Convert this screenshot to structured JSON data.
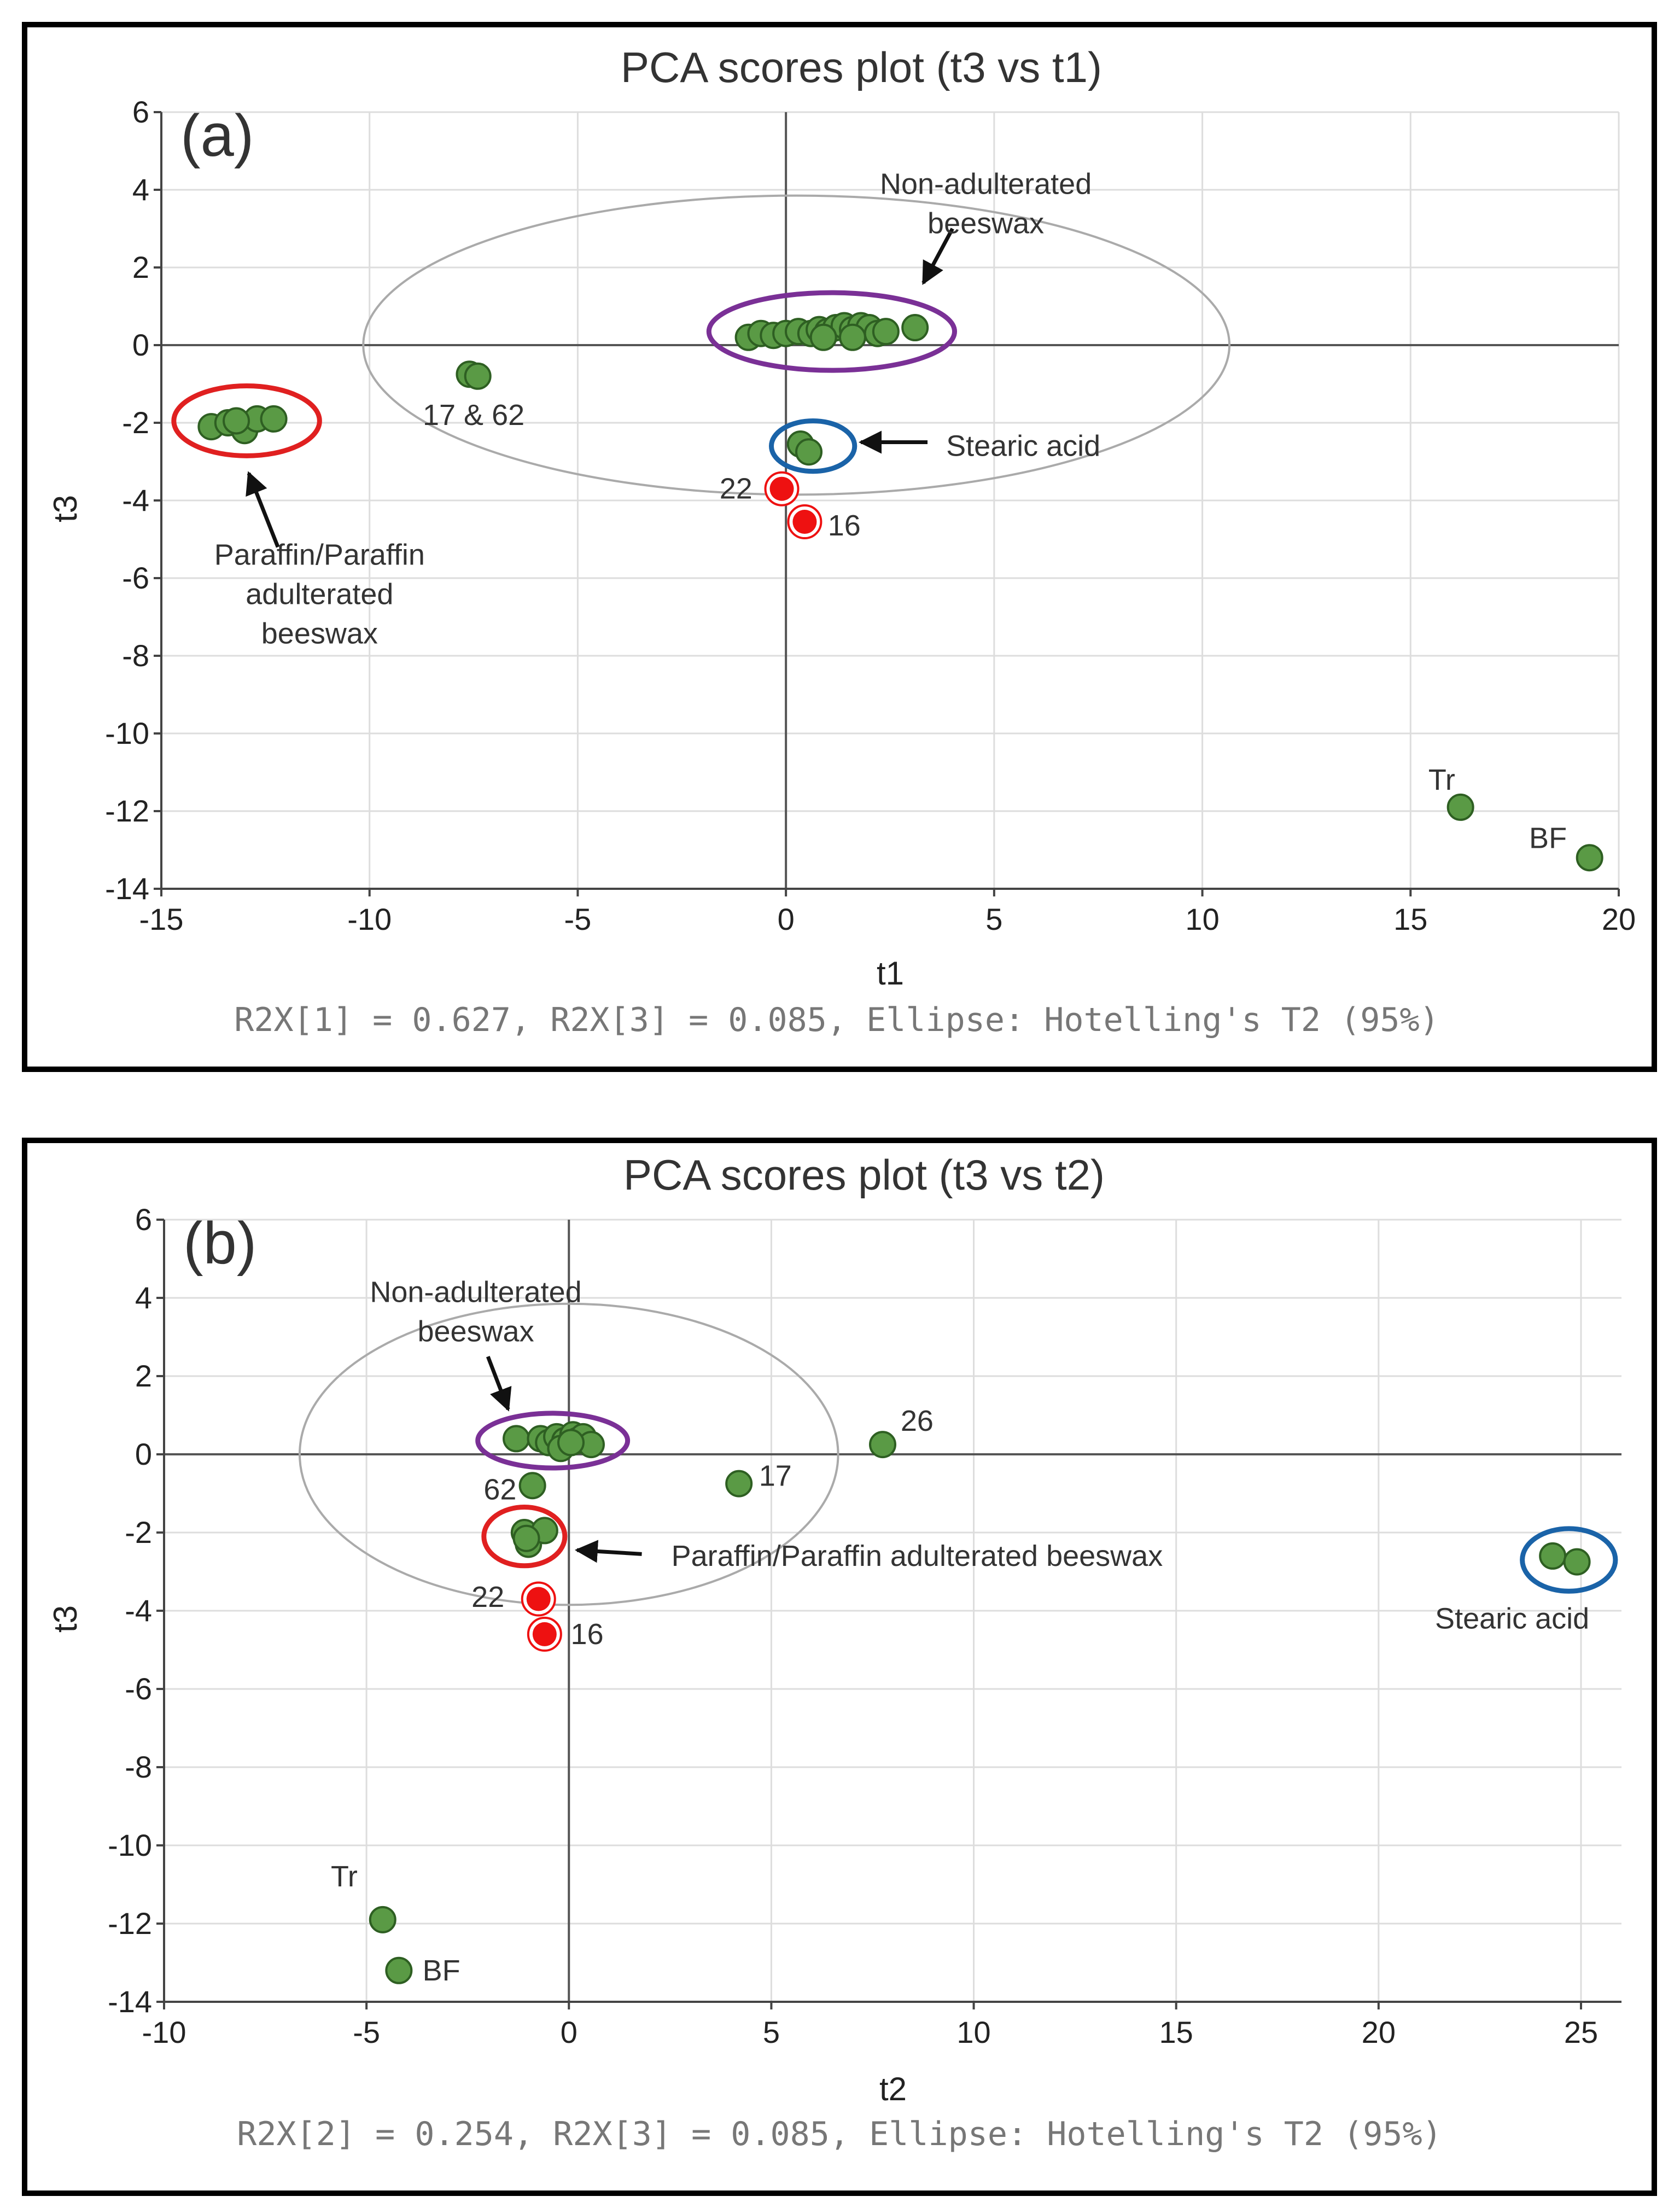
{
  "chart_data": [
    {
      "type": "scatter",
      "title": "PCA scores plot (t3 vs t1)",
      "panel_label": "(a)",
      "xlabel": "t1",
      "ylabel": "t3",
      "xlim": [
        -15,
        20
      ],
      "ylim": [
        -14,
        6
      ],
      "xticks": [
        -15,
        -10,
        -5,
        0,
        5,
        10,
        15,
        20
      ],
      "yticks": [
        6,
        4,
        2,
        0,
        -2,
        -4,
        -6,
        -8,
        -10,
        -12,
        -14
      ],
      "grid": true,
      "footer": "R2X[1] = 0.627, R2X[3] = 0.085, Ellipse: Hotelling's T2 (95%)",
      "ellipse": {
        "cx": 0.25,
        "cy": 0,
        "rx": 10.4,
        "ry": 3.85
      },
      "colors": {
        "point": "#5a9a45",
        "point_edge": "#2e5f22",
        "outlier": "#ee1111",
        "grid": "#dddddd",
        "ellipse": "#aaaaaa",
        "purple": "#7a3096",
        "red": "#e02020",
        "blue": "#1a63a8"
      },
      "points": [
        {
          "x": -13.8,
          "y": -2.1
        },
        {
          "x": -13.4,
          "y": -2.0
        },
        {
          "x": -13.0,
          "y": -2.2
        },
        {
          "x": -12.7,
          "y": -1.9
        },
        {
          "x": -12.3,
          "y": -1.9
        },
        {
          "x": -13.2,
          "y": -1.95
        },
        {
          "x": -7.6,
          "y": -0.75
        },
        {
          "x": -7.4,
          "y": -0.8
        },
        {
          "x": -0.9,
          "y": 0.2
        },
        {
          "x": -0.6,
          "y": 0.3
        },
        {
          "x": -0.3,
          "y": 0.25
        },
        {
          "x": 0.0,
          "y": 0.3
        },
        {
          "x": 0.3,
          "y": 0.35
        },
        {
          "x": 0.6,
          "y": 0.3
        },
        {
          "x": 0.8,
          "y": 0.4
        },
        {
          "x": 1.0,
          "y": 0.35
        },
        {
          "x": 1.2,
          "y": 0.45
        },
        {
          "x": 1.4,
          "y": 0.5
        },
        {
          "x": 1.6,
          "y": 0.4
        },
        {
          "x": 1.8,
          "y": 0.5
        },
        {
          "x": 2.0,
          "y": 0.45
        },
        {
          "x": 2.2,
          "y": 0.3
        },
        {
          "x": 2.4,
          "y": 0.35
        },
        {
          "x": 3.1,
          "y": 0.45
        },
        {
          "x": 0.9,
          "y": 0.2
        },
        {
          "x": 1.6,
          "y": 0.2
        },
        {
          "x": 0.35,
          "y": -2.55
        },
        {
          "x": 0.55,
          "y": -2.75
        },
        {
          "x": 16.2,
          "y": -11.9
        },
        {
          "x": 19.3,
          "y": -13.2
        }
      ],
      "outliers": [
        {
          "x": -0.1,
          "y": -3.7
        },
        {
          "x": 0.45,
          "y": -4.55
        }
      ],
      "group_ellipses": [
        {
          "name": "purple",
          "cx": 1.1,
          "cy": 0.35,
          "rx": 2.95,
          "ry": 1.0
        },
        {
          "name": "red",
          "cx": -12.95,
          "cy": -1.95,
          "rx": 1.75,
          "ry": 0.9
        },
        {
          "name": "blue",
          "cx": 0.65,
          "cy": -2.6,
          "rx": 1.0,
          "ry": 0.65
        }
      ],
      "annotations": [
        {
          "text": "17 & 62",
          "x": -7.5,
          "y": -1.8
        },
        {
          "text": "22",
          "x": -1.2,
          "y": -3.7
        },
        {
          "text": "16",
          "x": 1.4,
          "y": -4.65
        },
        {
          "text": "Tr",
          "x": 15.75,
          "y": -11.2
        },
        {
          "text": "BF",
          "x": 18.3,
          "y": -12.7
        },
        {
          "text": "Stearic acid",
          "x": 5.7,
          "y": -2.6
        }
      ],
      "multiline_annotations": [
        {
          "lines": [
            "Non-adulterated",
            "beeswax"
          ],
          "x": 4.8,
          "y": 4.15
        },
        {
          "lines": [
            "Paraffin/Paraffin",
            "adulterated",
            "beeswax"
          ],
          "x": -11.2,
          "y": -5.4
        }
      ]
    },
    {
      "type": "scatter",
      "title": "PCA scores plot (t3 vs t2)",
      "panel_label": "(b)",
      "xlabel": "t2",
      "ylabel": "t3",
      "xlim": [
        -10,
        26
      ],
      "ylim": [
        -14,
        6
      ],
      "xticks": [
        -10,
        -5,
        0,
        5,
        10,
        15,
        20,
        25
      ],
      "yticks": [
        6,
        4,
        2,
        0,
        -2,
        -4,
        -6,
        -8,
        -10,
        -12,
        -14
      ],
      "grid": true,
      "footer": "R2X[2] = 0.254, R2X[3] = 0.085, Ellipse: Hotelling's T2 (95%)",
      "ellipse": {
        "cx": 0.0,
        "cy": 0,
        "rx": 6.65,
        "ry": 3.85
      },
      "colors": {
        "point": "#5a9a45",
        "point_edge": "#2e5f22",
        "outlier": "#ee1111",
        "grid": "#dddddd",
        "ellipse": "#aaaaaa",
        "purple": "#7a3096",
        "red": "#e02020",
        "blue": "#1a63a8"
      },
      "points": [
        {
          "x": -1.3,
          "y": 0.4
        },
        {
          "x": -0.7,
          "y": 0.4
        },
        {
          "x": -0.5,
          "y": 0.3
        },
        {
          "x": -0.3,
          "y": 0.45
        },
        {
          "x": -0.1,
          "y": 0.35
        },
        {
          "x": 0.1,
          "y": 0.5
        },
        {
          "x": 0.2,
          "y": 0.35
        },
        {
          "x": 0.35,
          "y": 0.45
        },
        {
          "x": 0.55,
          "y": 0.25
        },
        {
          "x": -0.2,
          "y": 0.15
        },
        {
          "x": 0.05,
          "y": 0.3
        },
        {
          "x": -0.9,
          "y": -0.8
        },
        {
          "x": -1.1,
          "y": -2.0
        },
        {
          "x": -1.0,
          "y": -2.3
        },
        {
          "x": -0.6,
          "y": -1.95
        },
        {
          "x": -1.05,
          "y": -2.15
        },
        {
          "x": 4.2,
          "y": -0.75
        },
        {
          "x": 7.75,
          "y": 0.25
        },
        {
          "x": 24.3,
          "y": -2.6
        },
        {
          "x": 24.9,
          "y": -2.75
        },
        {
          "x": -4.6,
          "y": -11.9
        },
        {
          "x": -4.2,
          "y": -13.2
        }
      ],
      "outliers": [
        {
          "x": -0.75,
          "y": -3.7
        },
        {
          "x": -0.6,
          "y": -4.6
        }
      ],
      "group_ellipses": [
        {
          "name": "purple",
          "cx": -0.4,
          "cy": 0.35,
          "rx": 1.85,
          "ry": 0.7
        },
        {
          "name": "red",
          "cx": -1.1,
          "cy": -2.1,
          "rx": 1.0,
          "ry": 0.75
        },
        {
          "name": "blue",
          "cx": 24.7,
          "cy": -2.7,
          "rx": 1.15,
          "ry": 0.8
        }
      ],
      "annotations": [
        {
          "text": "62",
          "x": -1.7,
          "y": -0.9
        },
        {
          "text": "17",
          "x": 5.1,
          "y": -0.55
        },
        {
          "text": "26",
          "x": 8.6,
          "y": 0.85
        },
        {
          "text": "22",
          "x": -2.0,
          "y": -3.65
        },
        {
          "text": "16",
          "x": 0.45,
          "y": -4.6
        },
        {
          "text": "Tr",
          "x": -5.55,
          "y": -10.8
        },
        {
          "text": "BF",
          "x": -3.15,
          "y": -13.2
        },
        {
          "text": "Paraffin/Paraffin adulterated beeswax",
          "x": 8.6,
          "y": -2.6
        },
        {
          "text": "Stearic acid",
          "x": 23.3,
          "y": -4.2
        }
      ],
      "multiline_annotations": [
        {
          "lines": [
            "Non-adulterated",
            "beeswax"
          ],
          "x": -2.3,
          "y": 4.15
        }
      ]
    }
  ]
}
